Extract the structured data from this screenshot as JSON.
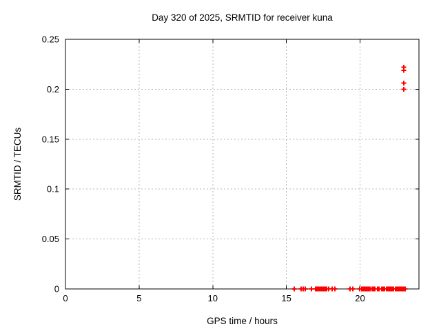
{
  "window": {
    "background": "#ffffff"
  },
  "chart_data": {
    "type": "scatter",
    "title": "Day 320 of 2025, SRMTID for receiver kuna",
    "xlabel": "GPS time / hours",
    "ylabel": "SRMTID / TECUs",
    "xlim": [
      0,
      24
    ],
    "ylim": [
      0,
      0.25
    ],
    "xticks": [
      0,
      5,
      10,
      15,
      20
    ],
    "yticks": [
      0,
      0.05,
      0.1,
      0.15,
      0.2,
      0.25
    ],
    "grid": true,
    "grid_style": "dotted",
    "legend_position": "none",
    "marker": {
      "shape": "plus",
      "color": "#ff0000",
      "size": 7,
      "stroke_width": 2
    },
    "colors": {
      "axis": "#000000",
      "grid": "#b5b5b5",
      "text": "#000000",
      "background": "#ffffff"
    },
    "points": [
      [
        15.53,
        0
      ],
      [
        16.0,
        0
      ],
      [
        16.14,
        0
      ],
      [
        16.28,
        0
      ],
      [
        16.7,
        0
      ],
      [
        16.98,
        0
      ],
      [
        17.08,
        0
      ],
      [
        17.17,
        0
      ],
      [
        17.26,
        0
      ],
      [
        17.36,
        0
      ],
      [
        17.45,
        0
      ],
      [
        17.54,
        0
      ],
      [
        17.64,
        0
      ],
      [
        17.73,
        0
      ],
      [
        17.87,
        0
      ],
      [
        18.1,
        0
      ],
      [
        18.3,
        0
      ],
      [
        19.32,
        0
      ],
      [
        19.51,
        0
      ],
      [
        19.98,
        0
      ],
      [
        20.12,
        0
      ],
      [
        20.21,
        0
      ],
      [
        20.3,
        0
      ],
      [
        20.4,
        0
      ],
      [
        20.49,
        0
      ],
      [
        20.58,
        0
      ],
      [
        20.68,
        0
      ],
      [
        20.82,
        0
      ],
      [
        20.91,
        0
      ],
      [
        21.01,
        0
      ],
      [
        21.19,
        0
      ],
      [
        21.29,
        0
      ],
      [
        21.47,
        0
      ],
      [
        21.57,
        0
      ],
      [
        21.66,
        0
      ],
      [
        21.8,
        0
      ],
      [
        21.89,
        0
      ],
      [
        21.99,
        0
      ],
      [
        22.08,
        0
      ],
      [
        22.17,
        0
      ],
      [
        22.27,
        0
      ],
      [
        22.41,
        0
      ],
      [
        22.5,
        0
      ],
      [
        22.6,
        0
      ],
      [
        22.69,
        0
      ],
      [
        22.78,
        0
      ],
      [
        22.88,
        0
      ],
      [
        22.97,
        0
      ],
      [
        23.06,
        0
      ],
      [
        22.97,
        0.2
      ],
      [
        22.97,
        0.206
      ],
      [
        22.97,
        0.219
      ],
      [
        22.97,
        0.222
      ]
    ]
  }
}
